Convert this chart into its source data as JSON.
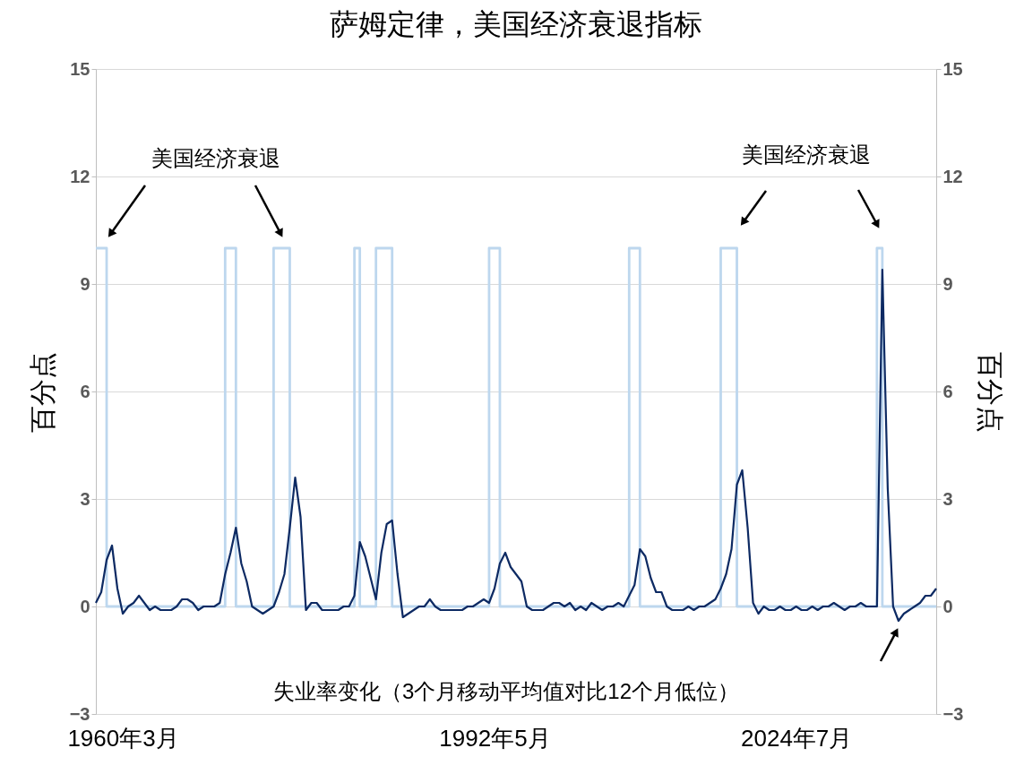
{
  "chart_data": {
    "type": "line",
    "title": "萨姆定律，美国经济衰退指标",
    "ylabel": "百分点",
    "y2label": "百分点",
    "annotations": [
      "美国经济衰退",
      "美国经济衰退",
      "失业率变化（3个月移动平均值对比12个月低位）"
    ],
    "categories": [
      null,
      null,
      null,
      null,
      null,
      "1960年3月",
      null,
      null,
      null,
      null,
      null,
      null,
      null,
      null,
      null,
      null,
      null,
      null,
      null,
      null,
      null,
      null,
      null,
      null,
      null,
      null,
      null,
      null,
      null,
      null,
      null,
      null,
      null,
      null,
      null,
      null,
      null,
      null,
      null,
      null,
      null,
      null,
      null,
      null,
      null,
      null,
      null,
      null,
      null,
      null,
      null,
      null,
      null,
      null,
      null,
      null,
      null,
      null,
      null,
      null,
      null,
      null,
      null,
      null,
      null,
      null,
      null,
      null,
      null,
      null,
      null,
      null,
      null,
      null,
      "1992年5月",
      null,
      null,
      null,
      null,
      null,
      null,
      null,
      null,
      null,
      null,
      null,
      null,
      null,
      null,
      null,
      null,
      null,
      null,
      null,
      null,
      null,
      null,
      null,
      null,
      null,
      null,
      null,
      null,
      null,
      null,
      null,
      null,
      null,
      null,
      null,
      null,
      null,
      null,
      null,
      null,
      null,
      null,
      null,
      null,
      null,
      null,
      null,
      null,
      null,
      null,
      null,
      null,
      null,
      null,
      null,
      "2024年7月",
      null,
      null,
      null,
      null,
      null,
      null,
      null,
      null,
      null,
      null,
      null,
      null,
      null,
      null,
      null,
      null,
      null,
      null,
      null,
      null,
      null,
      null,
      null,
      null,
      null,
      null
    ],
    "series": [
      {
        "type": "step",
        "axis": "y2",
        "color": "#bdd7ee",
        "values": [
          10,
          10,
          0,
          0,
          0,
          0,
          0,
          0,
          0,
          0,
          0,
          0,
          0,
          0,
          0,
          0,
          0,
          0,
          0,
          0,
          0,
          0,
          0,
          0,
          10,
          10,
          0,
          0,
          0,
          0,
          0,
          0,
          0,
          10,
          10,
          10,
          0,
          0,
          0,
          0,
          0,
          0,
          0,
          0,
          0,
          0,
          0,
          0,
          10,
          0,
          0,
          0,
          10,
          10,
          10,
          0,
          0,
          0,
          0,
          0,
          0,
          0,
          0,
          0,
          0,
          0,
          0,
          0,
          0,
          0,
          0,
          0,
          0,
          10,
          10,
          0,
          0,
          0,
          0,
          0,
          0,
          0,
          0,
          0,
          0,
          0,
          0,
          0,
          0,
          0,
          0,
          0,
          0,
          0,
          0,
          0,
          0,
          0,
          0,
          10,
          10,
          0,
          0,
          0,
          0,
          0,
          0,
          0,
          0,
          0,
          0,
          0,
          0,
          0,
          0,
          0,
          10,
          10,
          10,
          0,
          0,
          0,
          0,
          0,
          0,
          0,
          0,
          0,
          0,
          0,
          0,
          0,
          0,
          0,
          0,
          0,
          0,
          0,
          0,
          0,
          0,
          0,
          0,
          0,
          0,
          10,
          0,
          0,
          0,
          0,
          0,
          0,
          0,
          0,
          0,
          0,
          0
        ]
      },
      {
        "color": "#0d2a63",
        "values": [
          0.1,
          0.4,
          1.3,
          1.7,
          0.5,
          -0.2,
          0.0,
          0.1,
          0.3,
          0.1,
          -0.1,
          0.0,
          -0.1,
          -0.1,
          -0.1,
          0.0,
          0.2,
          0.2,
          0.1,
          -0.1,
          0.0,
          0.0,
          0.0,
          0.1,
          0.9,
          1.5,
          2.2,
          1.2,
          0.7,
          0.0,
          -0.1,
          -0.2,
          -0.1,
          0.0,
          0.4,
          0.9,
          2.2,
          3.6,
          2.5,
          -0.1,
          0.1,
          0.1,
          -0.1,
          -0.1,
          -0.1,
          -0.1,
          0.0,
          0.0,
          0.3,
          1.8,
          1.4,
          0.8,
          0.2,
          1.5,
          2.3,
          2.4,
          0.9,
          -0.3,
          -0.2,
          -0.1,
          0.0,
          0.0,
          0.2,
          0.0,
          -0.1,
          -0.1,
          -0.1,
          -0.1,
          -0.1,
          0.0,
          0.0,
          0.1,
          0.2,
          0.1,
          0.5,
          1.2,
          1.5,
          1.1,
          0.9,
          0.7,
          0.0,
          -0.1,
          -0.1,
          -0.1,
          0.0,
          0.1,
          0.1,
          0.0,
          0.1,
          -0.1,
          0.0,
          -0.1,
          0.1,
          0.0,
          -0.1,
          0.0,
          0.0,
          0.1,
          0.0,
          0.3,
          0.6,
          1.6,
          1.4,
          0.8,
          0.4,
          0.4,
          0.0,
          -0.1,
          -0.1,
          -0.1,
          0.0,
          -0.1,
          0.0,
          0.0,
          0.1,
          0.2,
          0.5,
          0.9,
          1.6,
          3.4,
          3.8,
          2.2,
          0.1,
          -0.2,
          0.0,
          -0.1,
          -0.1,
          0.0,
          -0.1,
          -0.1,
          0.0,
          -0.1,
          -0.1,
          0.0,
          -0.1,
          0.0,
          0.0,
          0.1,
          0.0,
          -0.1,
          0.0,
          0.0,
          0.1,
          0.0,
          0.0,
          0.0,
          9.4,
          3.3,
          0.0,
          -0.4,
          -0.2,
          -0.1,
          0.0,
          0.1,
          0.3,
          0.3,
          0.5
        ]
      }
    ],
    "ylim": [
      -3,
      15
    ],
    "yticks": [
      -3,
      0,
      3,
      6,
      9,
      12,
      15
    ],
    "y2lim": [
      -3,
      15
    ],
    "y2ticks": [
      -3,
      0,
      3,
      6,
      9,
      12,
      15
    ],
    "grid": "y"
  }
}
